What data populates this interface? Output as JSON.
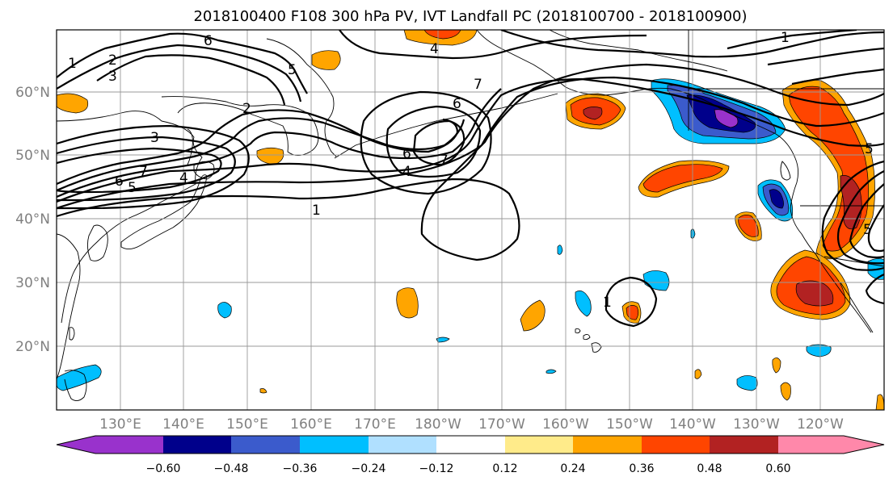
{
  "figure": {
    "title": "2018100400 F108 300 hPa PV, IVT Landfall PC (2018100700 - 2018100900)"
  },
  "map": {
    "lat_labels": [
      "60°N",
      "50°N",
      "40°N",
      "30°N",
      "20°N"
    ],
    "lon_labels": [
      "130°E",
      "140°E",
      "150°E",
      "160°E",
      "170°E",
      "180°W",
      "170°W",
      "160°W",
      "150°W",
      "140°W",
      "130°W",
      "120°W"
    ],
    "contour_labels": [
      "1",
      "2",
      "3",
      "6",
      "6",
      "5",
      "4",
      "7",
      "2",
      "3",
      "6",
      "5",
      "7",
      "4",
      "6",
      "4",
      "7",
      "1",
      "5",
      "1",
      "1",
      "5"
    ]
  },
  "colorbar": {
    "tick_labels": [
      "−0.60",
      "−0.48",
      "−0.36",
      "−0.24",
      "−0.12",
      "0.12",
      "0.24",
      "0.36",
      "0.48",
      "0.60"
    ],
    "colors": [
      "#9932CC",
      "#00008B",
      "#3B5BCC",
      "#00BFFF",
      "#B0E0FF",
      "#FFFFFF",
      "#FFEB8A",
      "#FFA500",
      "#FF4500",
      "#B22222",
      "#FF88AA"
    ]
  }
}
